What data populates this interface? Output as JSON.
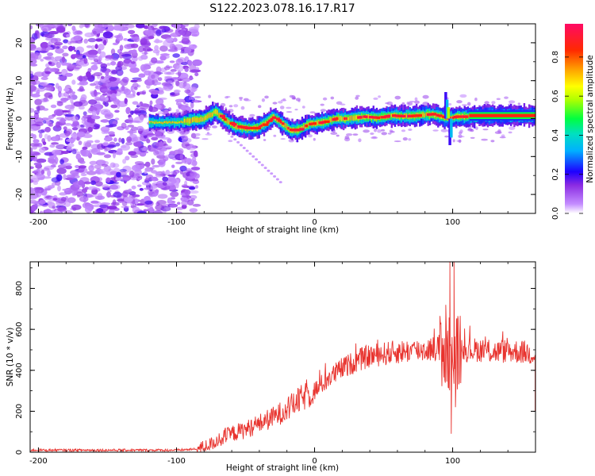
{
  "title": "S122.2023.078.16.17.R17",
  "chart_data": [
    {
      "type": "heatmap",
      "xlabel": "Height of straight line (km)",
      "ylabel": "Frequency (Hz)",
      "xlim": [
        -206,
        160
      ],
      "ylim": [
        -25,
        25
      ],
      "x_ticks": [
        -200,
        -100,
        0,
        100
      ],
      "y_ticks": [
        -20,
        -10,
        0,
        10,
        20
      ],
      "colorbar": {
        "label": "Normalized spectral amplitude",
        "range": [
          0,
          0.97
        ],
        "ticks": [
          0.0,
          0.2,
          0.4,
          0.6,
          0.8
        ],
        "tick_labels": [
          "0.0",
          "0.2",
          "0.4",
          "0.6",
          "0.8"
        ]
      },
      "noise_region_x": [
        -206,
        -85
      ],
      "signal_onset_x": -120,
      "ridge_frequency_hz": [
        [
          -120,
          -1.0
        ],
        [
          -100,
          -1.0
        ],
        [
          -90,
          -0.5
        ],
        [
          -80,
          0.0
        ],
        [
          -72,
          1.8
        ],
        [
          -65,
          -0.5
        ],
        [
          -58,
          -2.0
        ],
        [
          -50,
          -2.5
        ],
        [
          -42,
          -2.5
        ],
        [
          -35,
          -1.0
        ],
        [
          -30,
          0.5
        ],
        [
          -25,
          -1.0
        ],
        [
          -18,
          -3.0
        ],
        [
          -12,
          -3.0
        ],
        [
          -5,
          -1.5
        ],
        [
          5,
          -1.0
        ],
        [
          15,
          0.0
        ],
        [
          25,
          0.0
        ],
        [
          35,
          0.5
        ],
        [
          45,
          0.2
        ],
        [
          55,
          0.8
        ],
        [
          65,
          0.6
        ],
        [
          75,
          0.8
        ],
        [
          85,
          1.2
        ],
        [
          92,
          0.5
        ],
        [
          97,
          0.0
        ],
        [
          102,
          0.5
        ],
        [
          110,
          0.5
        ],
        [
          120,
          0.8
        ],
        [
          140,
          0.8
        ],
        [
          160,
          0.8
        ]
      ],
      "colors": {
        "low": "#a44bff",
        "high": "#ff0a64"
      }
    },
    {
      "type": "line",
      "xlabel": "Height of straight line (km)",
      "ylabel": "SNR (10 * v/v)",
      "xlim": [
        -206,
        160
      ],
      "ylim": [
        0,
        930
      ],
      "x_ticks": [
        -200,
        -100,
        0,
        100
      ],
      "y_ticks": [
        0,
        200,
        400,
        600,
        800
      ],
      "series": [
        {
          "color": "#e8332e",
          "trend": [
            [
              -206,
              10
            ],
            [
              -100,
              10
            ],
            [
              -85,
              15
            ],
            [
              -75,
              40
            ],
            [
              -70,
              60
            ],
            [
              -60,
              90
            ],
            [
              -50,
              110
            ],
            [
              -40,
              140
            ],
            [
              -30,
              170
            ],
            [
              -20,
              210
            ],
            [
              -10,
              260
            ],
            [
              0,
              300
            ],
            [
              10,
              360
            ],
            [
              20,
              410
            ],
            [
              30,
              445
            ],
            [
              40,
              470
            ],
            [
              50,
              480
            ],
            [
              60,
              490
            ],
            [
              70,
              495
            ],
            [
              80,
              500
            ],
            [
              88,
              510
            ],
            [
              92,
              510
            ],
            [
              96,
              480
            ],
            [
              100,
              480
            ],
            [
              104,
              490
            ],
            [
              110,
              500
            ],
            [
              120,
              500
            ],
            [
              130,
              490
            ],
            [
              140,
              495
            ],
            [
              150,
              490
            ],
            [
              160,
              480
            ]
          ],
          "spikes": [
            {
              "x": 95,
              "y": 720
            },
            {
              "x": 98,
              "y": 930
            },
            {
              "x": 99,
              "y": 90
            },
            {
              "x": 101,
              "y": 930
            },
            {
              "x": 102,
              "y": 220
            },
            {
              "x": 104,
              "y": 650
            }
          ]
        }
      ]
    }
  ]
}
